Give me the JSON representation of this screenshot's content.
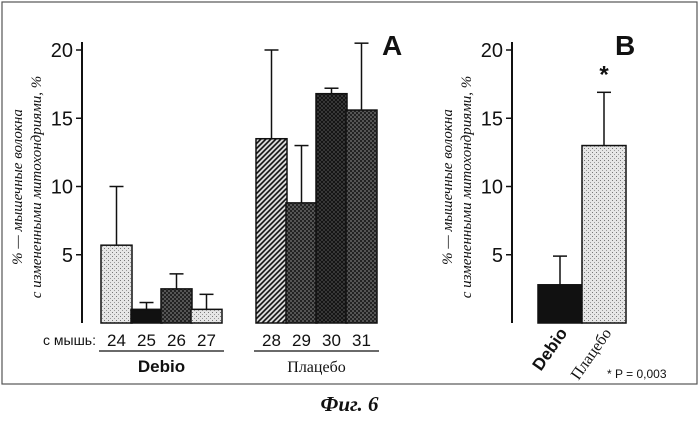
{
  "caption": "Фиг. 6",
  "chart_data": [
    {
      "panel": "A",
      "type": "bar",
      "ylabel_line1": "% — мышечные волокна",
      "ylabel_line2": "с измененными митохондриями, %",
      "ylim": [
        0,
        20
      ],
      "yticks": [
        5,
        10,
        15,
        20
      ],
      "tick_labels": [
        "5",
        "10",
        "15",
        "20"
      ],
      "x_prefix": "с мышь:",
      "categories": [
        "24",
        "25",
        "26",
        "27",
        "28",
        "29",
        "30",
        "31"
      ],
      "values": [
        5.7,
        1.0,
        2.5,
        1.0,
        13.5,
        8.8,
        16.8,
        15.6
      ],
      "errors": [
        4.3,
        0.5,
        1.1,
        1.1,
        6.5,
        4.2,
        0.4,
        4.9
      ],
      "patterns": [
        "stipple-light",
        "solid-black",
        "checker-dark",
        "stipple-light",
        "diagonal-hatch",
        "checker-dark",
        "crosshatch-dark",
        "checker-dark"
      ],
      "groups": [
        {
          "label": "Debio",
          "categories": [
            "24",
            "25",
            "26",
            "27"
          ]
        },
        {
          "label": "Плацебо",
          "categories": [
            "28",
            "29",
            "30",
            "31"
          ]
        }
      ]
    },
    {
      "panel": "B",
      "type": "bar",
      "ylabel_line1": "% — мышечные волокна",
      "ylabel_line2": "с измененными митохондриями, %",
      "ylim": [
        0,
        20
      ],
      "yticks": [
        5,
        10,
        15,
        20
      ],
      "tick_labels": [
        "5",
        "10",
        "15",
        "20"
      ],
      "categories": [
        "Debio",
        "Плацебо"
      ],
      "values": [
        2.8,
        13.0
      ],
      "errors": [
        2.1,
        3.9
      ],
      "patterns": [
        "solid-black",
        "stipple-light"
      ],
      "significance_mark": "*",
      "p_note": "* P = 0,003"
    }
  ]
}
